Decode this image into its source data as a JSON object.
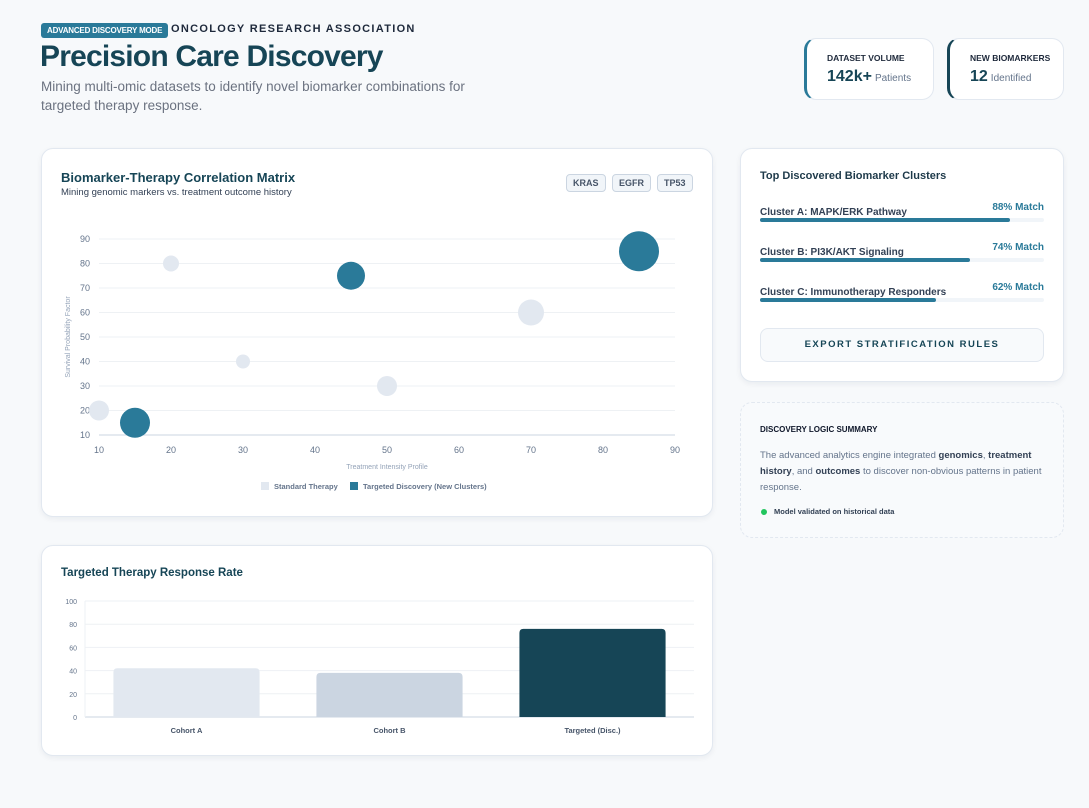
{
  "header": {
    "badge": "ADVANCED DISCOVERY MODE",
    "org": "ONCOLOGY RESEARCH ASSOCIATION",
    "title": "Precision Care Discovery",
    "subtitle": "Mining multi-omic datasets to identify novel biomarker combinations for targeted therapy response."
  },
  "stats": [
    {
      "label": "DATASET VOLUME",
      "value": "142k+",
      "unit": "Patients"
    },
    {
      "label": "NEW BIOMARKERS",
      "value": "12",
      "unit": "Identified"
    }
  ],
  "colors": {
    "accent": "#2a7a99",
    "dark": "#164556",
    "standard": "#e2e8f0"
  },
  "scatter": {
    "title": "Biomarker-Therapy Correlation Matrix",
    "subtitle": "Mining genomic markers vs. treatment outcome history",
    "tags": [
      "KRAS",
      "EGFR",
      "TP53"
    ]
  },
  "bars": {
    "title": "Targeted Therapy Response Rate"
  },
  "clusters": {
    "title": "Top Discovered Biomarker Clusters",
    "items": [
      {
        "name": "Cluster A: MAPK/ERK Pathway",
        "match": "88% Match",
        "value": 88
      },
      {
        "name": "Cluster B: PI3K/AKT Signaling",
        "match": "74% Match",
        "value": 74
      },
      {
        "name": "Cluster C: Immunotherapy Responders",
        "match": "62% Match",
        "value": 62
      }
    ],
    "export_label": "EXPORT STRATIFICATION RULES"
  },
  "logic": {
    "title": "DISCOVERY LOGIC SUMMARY",
    "t1": "The advanced analytics engine integrated ",
    "b1": "genomics",
    "t2": ", ",
    "b2": "treatment history",
    "t3": ", and ",
    "b3": "outcomes",
    "t4": " to discover non-obvious patterns in patient response.",
    "status": "Model validated on historical data"
  },
  "chart_data": [
    {
      "type": "scatter",
      "title": "Biomarker-Therapy Correlation Matrix",
      "xlabel": "Treatment Intensity Profile",
      "ylabel": "Survival Probability Factor",
      "xlim": [
        10,
        90
      ],
      "ylim": [
        10,
        90
      ],
      "xticks": [
        "10",
        "20",
        "30",
        "40",
        "50",
        "60",
        "70",
        "80",
        "90"
      ],
      "yticks": [
        "10",
        "20",
        "30",
        "40",
        "50",
        "60",
        "70",
        "80",
        "90"
      ],
      "grid": true,
      "legend": "bottom",
      "series": [
        {
          "name": "Standard Therapy",
          "color": "#e2e8f0",
          "points": [
            {
              "x": 10,
              "y": 20,
              "r": 5
            },
            {
              "x": 20,
              "y": 80,
              "r": 4
            },
            {
              "x": 30,
              "y": 40,
              "r": 3.5
            },
            {
              "x": 50,
              "y": 30,
              "r": 5
            },
            {
              "x": 70,
              "y": 60,
              "r": 6.5
            }
          ]
        },
        {
          "name": "Targeted Discovery (New Clusters)",
          "color": "#2a7a99",
          "points": [
            {
              "x": 15,
              "y": 15,
              "r": 7.5
            },
            {
              "x": 45,
              "y": 75,
              "r": 7
            },
            {
              "x": 85,
              "y": 85,
              "r": 10
            }
          ]
        }
      ]
    },
    {
      "type": "bar",
      "title": "Targeted Therapy Response Rate",
      "categories": [
        "Cohort A",
        "Cohort B",
        "Targeted (Disc.)"
      ],
      "values": [
        42,
        38,
        76
      ],
      "colors": [
        "#e2e8f0",
        "#cbd5e1",
        "#164556"
      ],
      "ylim": [
        0,
        100
      ],
      "yticks": [
        "0",
        "20",
        "40",
        "60",
        "80",
        "100"
      ],
      "grid": true
    }
  ]
}
